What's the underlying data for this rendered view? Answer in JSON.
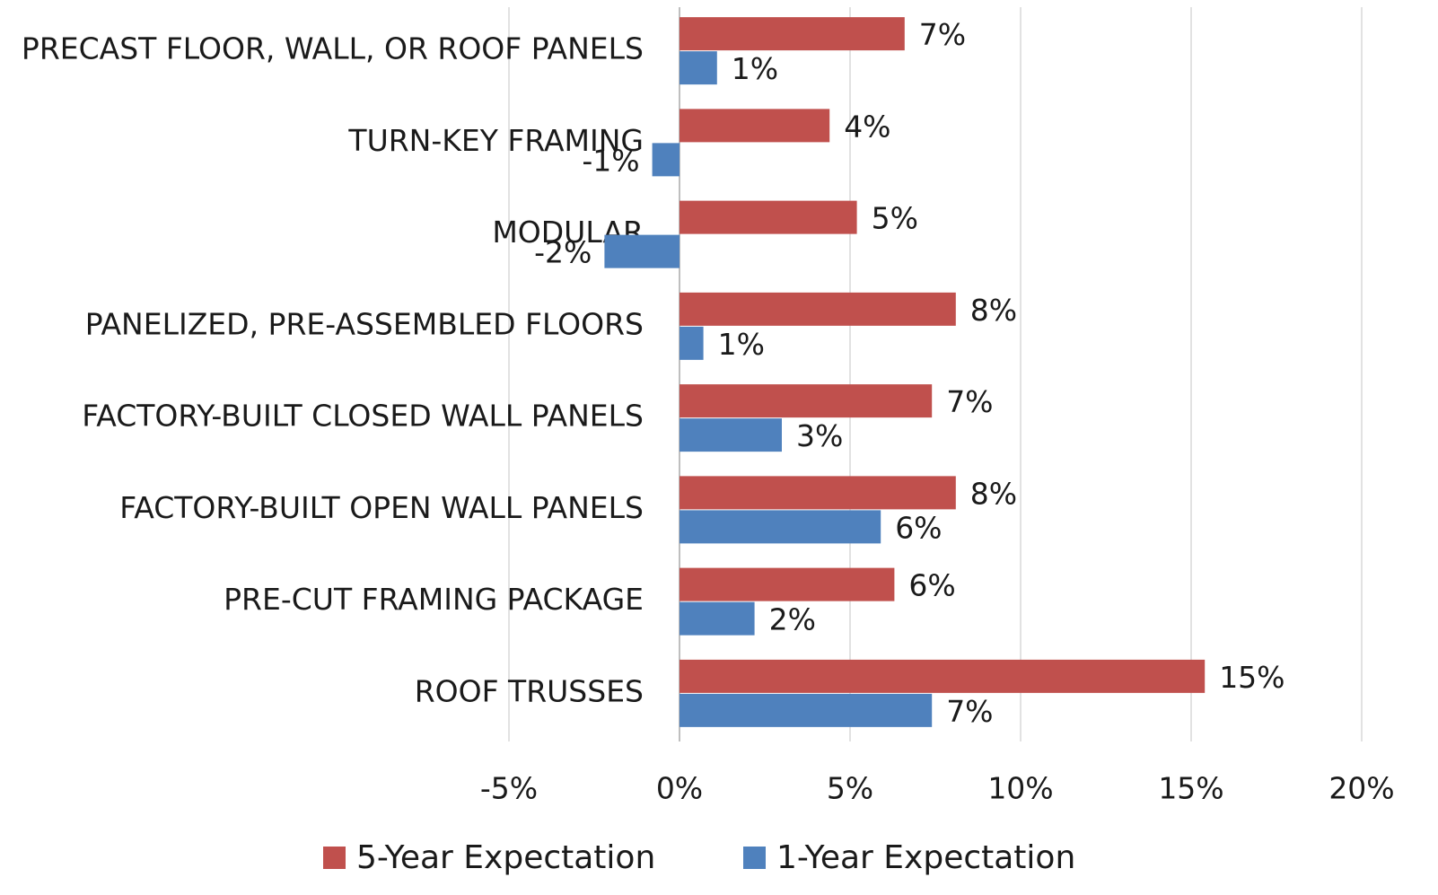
{
  "chart_data": {
    "type": "bar",
    "orientation": "horizontal",
    "categories": [
      "PRECAST FLOOR, WALL, OR ROOF PANELS",
      "TURN-KEY FRAMING",
      "MODULAR",
      "PANELIZED, PRE-ASSEMBLED FLOORS",
      "FACTORY-BUILT CLOSED WALL PANELS",
      "FACTORY-BUILT OPEN WALL PANELS",
      "PRE-CUT FRAMING PACKAGE",
      "ROOF TRUSSES"
    ],
    "series": [
      {
        "name": "5-Year Expectation",
        "color": "#c0504d",
        "values": [
          6.6,
          4.4,
          5.2,
          8.1,
          7.4,
          8.1,
          6.3,
          15.4
        ],
        "value_labels": [
          "7%",
          "4%",
          "5%",
          "8%",
          "7%",
          "8%",
          "6%",
          "15%"
        ]
      },
      {
        "name": "1-Year Expectation",
        "color": "#4f81bd",
        "values": [
          1.1,
          -0.8,
          -2.2,
          0.7,
          3.0,
          5.9,
          2.2,
          7.4
        ],
        "value_labels": [
          "1%",
          "-1%",
          "-2%",
          "1%",
          "3%",
          "6%",
          "2%",
          "7%"
        ]
      }
    ],
    "xlim": [
      -5,
      20
    ],
    "xticks": [
      {
        "value": -5,
        "label": "-5%"
      },
      {
        "value": 0,
        "label": "0%"
      },
      {
        "value": 5,
        "label": "5%"
      },
      {
        "value": 10,
        "label": "10%"
      },
      {
        "value": 15,
        "label": "15%"
      },
      {
        "value": 20,
        "label": "20%"
      }
    ],
    "grid": true,
    "legend": "bottom"
  }
}
